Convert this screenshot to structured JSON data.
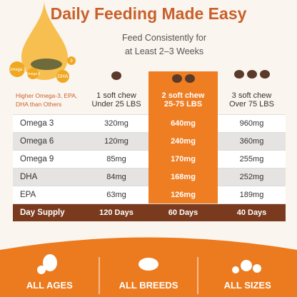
{
  "header": {
    "title": "Daily Feeding Made Easy",
    "subtitle": [
      "Feed Consistently for",
      "at Least 2–3 Weeks"
    ]
  },
  "drops": [
    "Omega 3",
    "Omega 6",
    "DHA",
    "9"
  ],
  "table": {
    "corner": "Higher Omega-3, EPA, DHA than Others",
    "columns": [
      [
        "1 soft chew",
        "Under 25 LBS"
      ],
      [
        "2 soft chew",
        "25-75 LBS"
      ],
      [
        "3 soft chew",
        "Over 75 LBS"
      ]
    ],
    "rows": [
      [
        "Omega 3",
        "320mg",
        "640mg",
        "960mg"
      ],
      [
        "Omega 6",
        "120mg",
        "240mg",
        "360mg"
      ],
      [
        "Omega 9",
        "85mg",
        "170mg",
        "255mg"
      ],
      [
        "DHA",
        "84mg",
        "168mg",
        "252mg"
      ],
      [
        "EPA",
        "63mg",
        "126mg",
        "189mg"
      ],
      [
        "Day Supply",
        "120 Days",
        "60 Days",
        "40 Days"
      ]
    ]
  },
  "footer": [
    "ALL AGES",
    "ALL BREEDS",
    "ALL SIZES"
  ]
}
